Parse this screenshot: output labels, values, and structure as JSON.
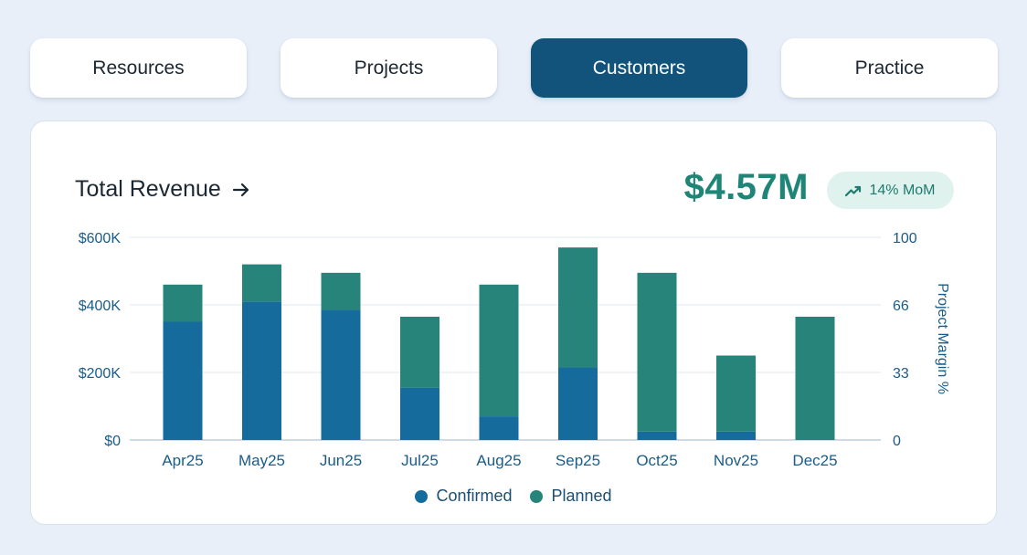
{
  "tabs": [
    {
      "label": "Resources",
      "active": false
    },
    {
      "label": "Projects",
      "active": false
    },
    {
      "label": "Customers",
      "active": true
    },
    {
      "label": "Practice",
      "active": false
    }
  ],
  "card": {
    "title": "Total Revenue",
    "total": "$4.57M",
    "badge": "14% MoM"
  },
  "colors": {
    "confirmed": "#166b9d",
    "planned": "#27847a",
    "active_tab": "#12537c",
    "accent_text": "#1e8577"
  },
  "icons": {
    "title_arrow": "arrow-right-icon",
    "badge_trend": "trending-up-icon"
  },
  "chart_data": {
    "type": "bar",
    "stacked": true,
    "categories": [
      "Apr25",
      "May25",
      "Jun25",
      "Jul25",
      "Aug25",
      "Sep25",
      "Oct25",
      "Nov25",
      "Dec25"
    ],
    "series": [
      {
        "name": "Confirmed",
        "values": [
          350,
          410,
          385,
          155,
          70,
          215,
          25,
          25,
          0
        ]
      },
      {
        "name": "Planned",
        "values": [
          110,
          110,
          110,
          210,
          390,
          355,
          470,
          225,
          365
        ]
      }
    ],
    "value_unit": "thousands USD",
    "y_left": {
      "ticks": [
        "$0",
        "$200K",
        "$400K",
        "$600K"
      ],
      "ylim": [
        0,
        600
      ]
    },
    "y_right": {
      "label": "Project Margin %",
      "ticks": [
        "0",
        "33",
        "66",
        "100"
      ],
      "ylim": [
        0,
        100
      ]
    },
    "grid": true,
    "legend": {
      "placement": "bottom-center",
      "entries": [
        "Confirmed",
        "Planned"
      ]
    }
  }
}
